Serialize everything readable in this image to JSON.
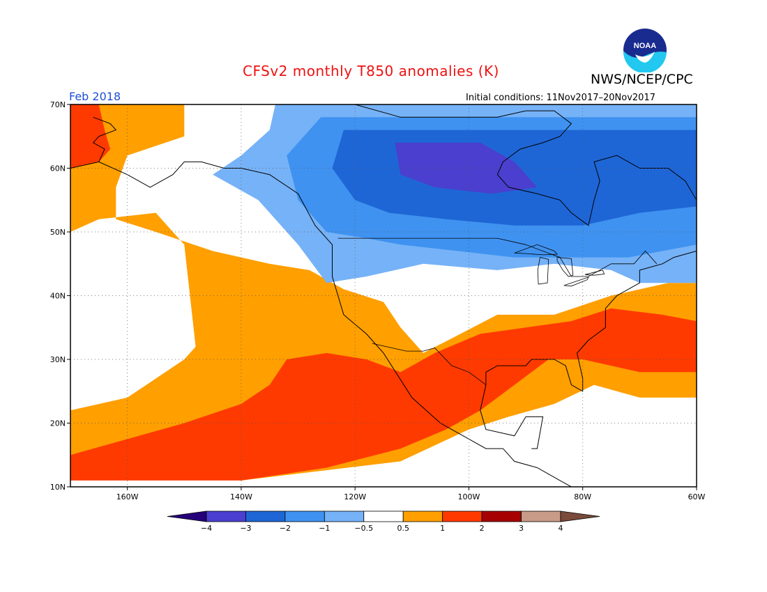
{
  "header": {
    "title": "CFSv2 monthly T850 anomalies (K)",
    "agency": "NWS/NCEP/CPC",
    "period": "Feb 2018",
    "initial_conditions": "Initial conditions: 11Nov2017–20Nov2017",
    "logo_text": "NOAA"
  },
  "colors": {
    "title": "#ee1111",
    "period": "#1f4fd8",
    "grid": "#555555"
  },
  "map_data": {
    "lat_range": [
      10,
      70
    ],
    "lon_range": [
      -170,
      -60
    ],
    "lat_ticks": [
      {
        "value": 10,
        "label": "10N"
      },
      {
        "value": 20,
        "label": "20N"
      },
      {
        "value": 30,
        "label": "30N"
      },
      {
        "value": 40,
        "label": "40N"
      },
      {
        "value": 50,
        "label": "50N"
      },
      {
        "value": 60,
        "label": "60N"
      },
      {
        "value": 70,
        "label": "70N"
      }
    ],
    "lon_ticks": [
      {
        "value": -160,
        "label": "160W"
      },
      {
        "value": -140,
        "label": "140W"
      },
      {
        "value": -120,
        "label": "120W"
      },
      {
        "value": -100,
        "label": "100W"
      },
      {
        "value": -80,
        "label": "80W"
      },
      {
        "value": -60,
        "label": "60W"
      }
    ],
    "anomaly_regions": [
      {
        "name": "warm-nw-pacific-orange",
        "color": "#ff9f00",
        "points": [
          [
            -170,
            70
          ],
          [
            -150,
            70
          ],
          [
            -150,
            65
          ],
          [
            -160,
            62
          ],
          [
            -162,
            57
          ],
          [
            -162,
            52
          ],
          [
            -155,
            50
          ],
          [
            -145,
            47
          ],
          [
            -135,
            45
          ],
          [
            -128,
            44
          ],
          [
            -122,
            41
          ],
          [
            -115,
            39
          ],
          [
            -112,
            35
          ],
          [
            -108,
            31
          ],
          [
            -95,
            37
          ],
          [
            -85,
            37
          ],
          [
            -75,
            40
          ],
          [
            -65,
            42
          ],
          [
            -60,
            42
          ],
          [
            -60,
            24
          ],
          [
            -70,
            24
          ],
          [
            -78,
            26
          ],
          [
            -85,
            23
          ],
          [
            -93,
            21
          ],
          [
            -100,
            19
          ],
          [
            -112,
            14
          ],
          [
            -140,
            11
          ],
          [
            -170,
            13
          ],
          [
            -170,
            22
          ],
          [
            -160,
            24
          ],
          [
            -155,
            27
          ],
          [
            -150,
            30
          ],
          [
            -148,
            32
          ],
          [
            -150,
            48
          ],
          [
            -155,
            53
          ],
          [
            -165,
            52
          ],
          [
            -170,
            50
          ]
        ]
      },
      {
        "name": "cool-north-light-blue",
        "color": "#76b2f7",
        "points": [
          [
            -134,
            70
          ],
          [
            -60,
            70
          ],
          [
            -60,
            42
          ],
          [
            -70,
            42
          ],
          [
            -75,
            44
          ],
          [
            -85,
            45
          ],
          [
            -95,
            44
          ],
          [
            -108,
            45
          ],
          [
            -118,
            43
          ],
          [
            -125,
            42
          ],
          [
            -130,
            48
          ],
          [
            -137,
            55
          ],
          [
            -145,
            59
          ],
          [
            -140,
            62
          ],
          [
            -135,
            66
          ]
        ]
      },
      {
        "name": "cool-canada-mid-blue",
        "color": "#3f92f0",
        "points": [
          [
            -126,
            68
          ],
          [
            -60,
            68
          ],
          [
            -60,
            48
          ],
          [
            -72,
            46
          ],
          [
            -82,
            46
          ],
          [
            -92,
            46
          ],
          [
            -102,
            47
          ],
          [
            -112,
            48
          ],
          [
            -118,
            49
          ],
          [
            -125,
            50
          ],
          [
            -130,
            55
          ],
          [
            -132,
            62
          ]
        ]
      },
      {
        "name": "cool-canada-blue",
        "color": "#1e66d6",
        "points": [
          [
            -122,
            66
          ],
          [
            -60,
            66
          ],
          [
            -60,
            54
          ],
          [
            -70,
            53
          ],
          [
            -80,
            51
          ],
          [
            -92,
            51
          ],
          [
            -104,
            52
          ],
          [
            -114,
            53
          ],
          [
            -120,
            55
          ],
          [
            -124,
            60
          ]
        ]
      },
      {
        "name": "cool-canada-dark-blue",
        "color": "#4a3fce",
        "points": [
          [
            -113,
            64
          ],
          [
            -98,
            64
          ],
          [
            -92,
            61
          ],
          [
            -88,
            57
          ],
          [
            -96,
            56
          ],
          [
            -106,
            57
          ],
          [
            -112,
            59
          ]
        ]
      },
      {
        "name": "warm-pacific-red",
        "color": "#ff3a00",
        "points": [
          [
            -170,
            15
          ],
          [
            -150,
            20
          ],
          [
            -140,
            23
          ],
          [
            -135,
            26
          ],
          [
            -132,
            30
          ],
          [
            -125,
            31
          ],
          [
            -118,
            30
          ],
          [
            -112,
            28
          ],
          [
            -106,
            31
          ],
          [
            -98,
            34
          ],
          [
            -90,
            35
          ],
          [
            -82,
            36
          ],
          [
            -75,
            38
          ],
          [
            -66,
            37
          ],
          [
            -60,
            36
          ],
          [
            -60,
            28
          ],
          [
            -70,
            28
          ],
          [
            -80,
            30
          ],
          [
            -86,
            30
          ],
          [
            -92,
            26
          ],
          [
            -98,
            22
          ],
          [
            -104,
            19
          ],
          [
            -112,
            16
          ],
          [
            -125,
            13
          ],
          [
            -140,
            11
          ],
          [
            -160,
            11
          ],
          [
            -170,
            11
          ]
        ]
      },
      {
        "name": "warm-alaska-red",
        "color": "#ff3a00",
        "points": [
          [
            -170,
            70
          ],
          [
            -165,
            70
          ],
          [
            -164,
            66
          ],
          [
            -163,
            63
          ],
          [
            -165,
            61
          ],
          [
            -170,
            60
          ]
        ]
      }
    ],
    "land_outline_paths": [
      "M -140,60 L -135,59 L -130,56 L -127,51 L -124,48 L -124,43 L -122,37 L -118,34 L -115,31 L -110,24 L -105,20 L -97,16 L -94,16 L -92,14 L -88,13 L -84,11 L -80,9",
      "M -97,26 L -97,28 L -95,29 L -90,29 L -89,30 L -85,30 L -83,29 L -82,26 L -80,25 L -80,27 L -81,31 L -79,33 L -76,35 L -76,38 L -74,40 L -70,42 L -70,44 L -66,45 L -64,46 L -60,47",
      "M -97,26 L -98,22 L -97,19 L -92,18 L -90,21 L -87,21 L -88,16 L -89,16",
      "M -170,60 L -165,61 L -160,59 L -156,57 L -152,59 L -150,61 L -147,61 L -143,60 L -140,60",
      "M -166,68 L -163,67 L -162,66 L -165,65 L -166,64 L -164,63 L -165,61",
      "M -95,59 L -93,57 L -88,56 L -84,55 L -82,53 L -79,51 L -78,55 L -77,58 L -78,61 L -74,62 L -70,60 L -65,60 L -62,58 L -60,55",
      "M -95,59 L -94,61 L -91,63 L -87,64 L -84,65 L -82,67 L -85,69 L -90,69 L -95,68 L -100,68 L -106,68 L -112,68 L -120,70"
    ],
    "border_paths": [
      "M -123,49 L -95,49 L -90,48 L -84,46 L -82,43 L -79,43 L -75,45 L -71,45 L -69,47 L -67,45",
      "M -117,32.5 L -111,31.3 L -108,31.3 L -106,31.8 L -103,29 L -100,28 L -97,26"
    ],
    "great_lakes": [
      {
        "name": "lake-superior",
        "points": [
          [
            -92,
            46.7
          ],
          [
            -88,
            48
          ],
          [
            -85,
            47
          ],
          [
            -84.5,
            46.5
          ],
          [
            -87,
            46.4
          ],
          [
            -90,
            46.6
          ]
        ]
      },
      {
        "name": "lake-michigan",
        "points": [
          [
            -87.5,
            46
          ],
          [
            -86,
            45.7
          ],
          [
            -86.2,
            42
          ],
          [
            -87.8,
            41.8
          ],
          [
            -87.9,
            44
          ]
        ]
      },
      {
        "name": "lake-huron",
        "points": [
          [
            -84.5,
            46
          ],
          [
            -82,
            45.8
          ],
          [
            -81.7,
            43.2
          ],
          [
            -82.5,
            43
          ],
          [
            -83.5,
            44
          ],
          [
            -84.5,
            45.5
          ]
        ]
      },
      {
        "name": "lake-erie",
        "points": [
          [
            -83.3,
            41.6
          ],
          [
            -81,
            42.3
          ],
          [
            -79,
            42.9
          ],
          [
            -79.2,
            42.5
          ],
          [
            -82,
            41.5
          ]
        ]
      },
      {
        "name": "lake-ontario",
        "points": [
          [
            -79.6,
            43.3
          ],
          [
            -76.5,
            44
          ],
          [
            -76.2,
            43.4
          ],
          [
            -78,
            43.2
          ]
        ]
      }
    ]
  },
  "colorbar": {
    "segments": [
      {
        "range": "< -4",
        "color": "#25007a"
      },
      {
        "range": "-4 to -3",
        "color": "#4a3fce"
      },
      {
        "range": "-3 to -2",
        "color": "#1e66d6"
      },
      {
        "range": "-2 to -1",
        "color": "#3f92f0"
      },
      {
        "range": "-1 to -0.5",
        "color": "#76b2f7"
      },
      {
        "range": "-0.5 to 0.5",
        "color": "#ffffff"
      },
      {
        "range": "0.5 to 1",
        "color": "#ff9f00"
      },
      {
        "range": "1 to 2",
        "color": "#ff3a00"
      },
      {
        "range": "2 to 3",
        "color": "#a60000"
      },
      {
        "range": "3 to 4",
        "color": "#c89a88"
      },
      {
        "range": "> 4",
        "color": "#7a4a3a"
      }
    ],
    "labels": [
      "−4",
      "−3",
      "−2",
      "−1",
      "−0.5",
      "0.5",
      "1",
      "2",
      "3",
      "4"
    ]
  }
}
